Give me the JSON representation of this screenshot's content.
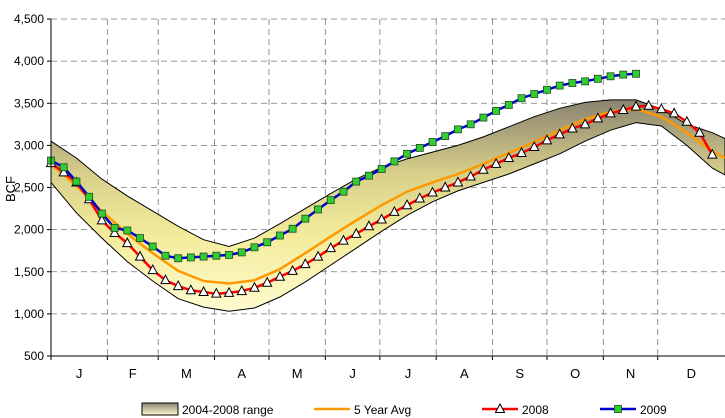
{
  "chart_data": {
    "type": "line",
    "ylabel": "BCF",
    "xlabel": "",
    "ylim": [
      500,
      4500
    ],
    "yticks": [
      500,
      1000,
      1500,
      2000,
      2500,
      3000,
      3500,
      4000,
      4500
    ],
    "ytick_labels": [
      "500",
      "1,000",
      "1,500",
      "2,000",
      "2,500",
      "3,000",
      "3,500",
      "4,000",
      "4,500"
    ],
    "xlim": [
      0,
      53
    ],
    "x_unit": "week of year",
    "x_ticks": [
      0,
      4.43,
      8.43,
      12.86,
      17.14,
      21.57,
      25.86,
      30.29,
      34.71,
      39,
      43.43,
      47.71
    ],
    "months": [
      "J",
      "F",
      "M",
      "A",
      "M",
      "J",
      "J",
      "A",
      "S",
      "O",
      "N",
      "D"
    ],
    "grid": true,
    "legend_position": "bottom",
    "colors": {
      "range_fill_dark": "#8a8370",
      "range_fill_light": "#fff9b8",
      "avg": "#ff9900",
      "y2008": "#ff0000",
      "y2009": "#0000cc",
      "y2009_marker": "#33cc33"
    },
    "series": [
      {
        "name": "2004-2008 range",
        "kind": "band",
        "x": [
          0,
          2,
          4,
          6,
          8,
          10,
          12,
          14,
          16,
          18,
          20,
          22,
          24,
          26,
          28,
          30,
          32,
          34,
          36,
          38,
          40,
          42,
          44,
          46,
          48,
          50,
          52,
          53
        ],
        "low": [
          2560,
          2200,
          1900,
          1620,
          1390,
          1180,
          1080,
          1030,
          1070,
          1200,
          1380,
          1580,
          1780,
          1980,
          2170,
          2330,
          2460,
          2560,
          2660,
          2780,
          2900,
          3050,
          3180,
          3270,
          3230,
          3000,
          2730,
          2650
        ],
        "high": [
          3050,
          2850,
          2600,
          2400,
          2220,
          2040,
          1880,
          1800,
          1900,
          2070,
          2250,
          2430,
          2600,
          2740,
          2840,
          2920,
          3000,
          3100,
          3220,
          3340,
          3440,
          3510,
          3540,
          3540,
          3430,
          3250,
          3150,
          3080
        ]
      },
      {
        "name": "5 Year Avg",
        "kind": "line",
        "x": [
          0,
          2,
          4,
          6,
          8,
          10,
          12,
          14,
          16,
          18,
          20,
          22,
          24,
          26,
          28,
          30,
          32,
          34,
          36,
          38,
          40,
          42,
          44,
          46,
          48,
          50,
          52,
          53
        ],
        "values": [
          2780,
          2520,
          2220,
          1950,
          1720,
          1510,
          1390,
          1360,
          1400,
          1530,
          1720,
          1920,
          2110,
          2290,
          2450,
          2560,
          2660,
          2780,
          2910,
          3040,
          3180,
          3310,
          3400,
          3430,
          3340,
          3150,
          2930,
          2850
        ]
      },
      {
        "name": "2008",
        "kind": "line",
        "x": [
          0,
          1,
          2,
          3,
          4,
          5,
          6,
          7,
          8,
          9,
          10,
          11,
          12,
          13,
          14,
          15,
          16,
          17,
          18,
          19,
          20,
          21,
          22,
          23,
          24,
          25,
          26,
          27,
          28,
          29,
          30,
          31,
          32,
          33,
          34,
          35,
          36,
          37,
          38,
          39,
          40,
          41,
          42,
          43,
          44,
          45,
          46,
          47,
          48,
          49,
          50,
          51,
          52
        ],
        "values": [
          2790,
          2680,
          2560,
          2360,
          2110,
          1960,
          1840,
          1680,
          1520,
          1400,
          1330,
          1280,
          1260,
          1240,
          1250,
          1270,
          1310,
          1370,
          1440,
          1510,
          1590,
          1680,
          1780,
          1870,
          1950,
          2040,
          2120,
          2210,
          2290,
          2370,
          2440,
          2500,
          2560,
          2630,
          2710,
          2780,
          2850,
          2910,
          2980,
          3060,
          3130,
          3200,
          3250,
          3320,
          3380,
          3420,
          3460,
          3470,
          3430,
          3380,
          3280,
          3150,
          2890
        ]
      },
      {
        "name": "2009",
        "kind": "line",
        "x": [
          0,
          1,
          2,
          3,
          4,
          5,
          6,
          7,
          8,
          9,
          10,
          11,
          12,
          13,
          14,
          15,
          16,
          17,
          18,
          19,
          20,
          21,
          22,
          23,
          24,
          25,
          26,
          27,
          28,
          29,
          30,
          31,
          32,
          33,
          34,
          35,
          36,
          37,
          38,
          39,
          40,
          41,
          42,
          43,
          44,
          45,
          46
        ],
        "values": [
          2820,
          2740,
          2570,
          2390,
          2190,
          2020,
          1990,
          1900,
          1800,
          1690,
          1660,
          1670,
          1680,
          1690,
          1700,
          1730,
          1790,
          1850,
          1930,
          2010,
          2130,
          2240,
          2350,
          2450,
          2570,
          2640,
          2720,
          2810,
          2900,
          2970,
          3040,
          3110,
          3190,
          3250,
          3330,
          3410,
          3480,
          3560,
          3610,
          3660,
          3710,
          3740,
          3760,
          3790,
          3820,
          3840,
          3850
        ]
      }
    ]
  }
}
